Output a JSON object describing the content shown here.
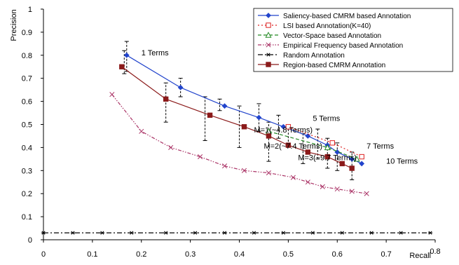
{
  "chart_data": {
    "type": "line",
    "xlabel": "Recall",
    "ylabel": "Precision",
    "xlim": [
      0,
      0.8
    ],
    "ylim": [
      0,
      1
    ],
    "x_ticks": [
      "0",
      "0.1",
      "0.2",
      "0.3",
      "0.4",
      "0.5",
      "0.6",
      "0.7",
      "0.8"
    ],
    "y_ticks": [
      "0",
      "0.1",
      "0.2",
      "0.3",
      "0.4",
      "0.5",
      "0.6",
      "0.7",
      "0.8",
      "0.9",
      "1"
    ],
    "grid": false,
    "legend_position": "top-right",
    "series": [
      {
        "name": "Saliency-based CMRM based Annotation",
        "color": "#2244cc",
        "line_style": "solid",
        "marker": "diamond",
        "x": [
          0.17,
          0.28,
          0.37,
          0.44,
          0.49,
          0.54,
          0.58,
          0.6,
          0.63,
          0.65
        ],
        "y": [
          0.8,
          0.66,
          0.58,
          0.53,
          0.49,
          0.45,
          0.41,
          0.38,
          0.35,
          0.33
        ]
      },
      {
        "name": "LSI based Annotation(K=40)",
        "color": "#dd2222",
        "line_style": "dotted",
        "marker": "square-open",
        "x": [
          0.5,
          0.59,
          0.65
        ],
        "y": [
          0.49,
          0.42,
          0.36
        ]
      },
      {
        "name": "Vector-Space based Annotation",
        "color": "#228822",
        "line_style": "dashed",
        "marker": "triangle-open",
        "x": [
          0.46,
          0.58,
          0.64
        ],
        "y": [
          0.47,
          0.4,
          0.35
        ]
      },
      {
        "name": "Empirical Frequency based Annotation",
        "color": "#aa3366",
        "line_style": "dash-dot-dot",
        "marker": "x",
        "x": [
          0.14,
          0.2,
          0.26,
          0.32,
          0.37,
          0.41,
          0.46,
          0.51,
          0.54,
          0.57,
          0.6,
          0.63,
          0.66
        ],
        "y": [
          0.63,
          0.47,
          0.4,
          0.36,
          0.32,
          0.3,
          0.29,
          0.27,
          0.25,
          0.23,
          0.22,
          0.21,
          0.2
        ]
      },
      {
        "name": "Random Annotation",
        "color": "#000000",
        "line_style": "dash-dot",
        "marker": "asterisk",
        "x": [
          0.0,
          0.06,
          0.12,
          0.18,
          0.25,
          0.31,
          0.37,
          0.43,
          0.49,
          0.55,
          0.61,
          0.67,
          0.73,
          0.79
        ],
        "y": [
          0.03,
          0.03,
          0.03,
          0.03,
          0.03,
          0.03,
          0.03,
          0.03,
          0.03,
          0.03,
          0.03,
          0.03,
          0.03,
          0.03
        ]
      },
      {
        "name": "Region-based CMRM Annotation",
        "color": "#8b1a1a",
        "line_style": "solid",
        "marker": "square-filled",
        "x": [
          0.16,
          0.25,
          0.34,
          0.41,
          0.46,
          0.5,
          0.54,
          0.58,
          0.61,
          0.63
        ],
        "y": [
          0.75,
          0.61,
          0.54,
          0.49,
          0.45,
          0.41,
          0.38,
          0.36,
          0.33,
          0.31
        ]
      }
    ],
    "error_bars": [
      {
        "x": 0.17,
        "low": 0.73,
        "high": 0.86
      },
      {
        "x": 0.165,
        "low": 0.72,
        "high": 0.82
      },
      {
        "x": 0.25,
        "low": 0.51,
        "high": 0.68
      },
      {
        "x": 0.28,
        "low": 0.62,
        "high": 0.7
      },
      {
        "x": 0.33,
        "low": 0.43,
        "high": 0.62
      },
      {
        "x": 0.36,
        "low": 0.56,
        "high": 0.61
      },
      {
        "x": 0.4,
        "low": 0.4,
        "high": 0.58
      },
      {
        "x": 0.44,
        "low": 0.47,
        "high": 0.59
      },
      {
        "x": 0.46,
        "low": 0.34,
        "high": 0.51
      },
      {
        "x": 0.48,
        "low": 0.44,
        "high": 0.54
      },
      {
        "x": 0.5,
        "low": 0.41,
        "high": 0.48
      },
      {
        "x": 0.53,
        "low": 0.33,
        "high": 0.46
      },
      {
        "x": 0.56,
        "low": 0.35,
        "high": 0.48
      },
      {
        "x": 0.58,
        "low": 0.31,
        "high": 0.44
      },
      {
        "x": 0.6,
        "low": 0.3,
        "high": 0.42
      },
      {
        "x": 0.63,
        "low": 0.26,
        "high": 0.38
      }
    ],
    "annotations": [
      {
        "text": "1 Terms",
        "x": 0.2,
        "y": 0.8
      },
      {
        "text": "5 Terms",
        "x": 0.55,
        "y": 0.515
      },
      {
        "text": "7 Terms",
        "x": 0.66,
        "y": 0.395
      },
      {
        "text": "10 Terms",
        "x": 0.7,
        "y": 0.33
      },
      {
        "text": "M=1(~4.8 Terms)",
        "x": 0.43,
        "y": 0.465
      },
      {
        "text": "M=2(~7.4 Terms)",
        "x": 0.45,
        "y": 0.395
      },
      {
        "text": "M=3(~9.7 Terms)",
        "x": 0.52,
        "y": 0.345
      }
    ]
  }
}
